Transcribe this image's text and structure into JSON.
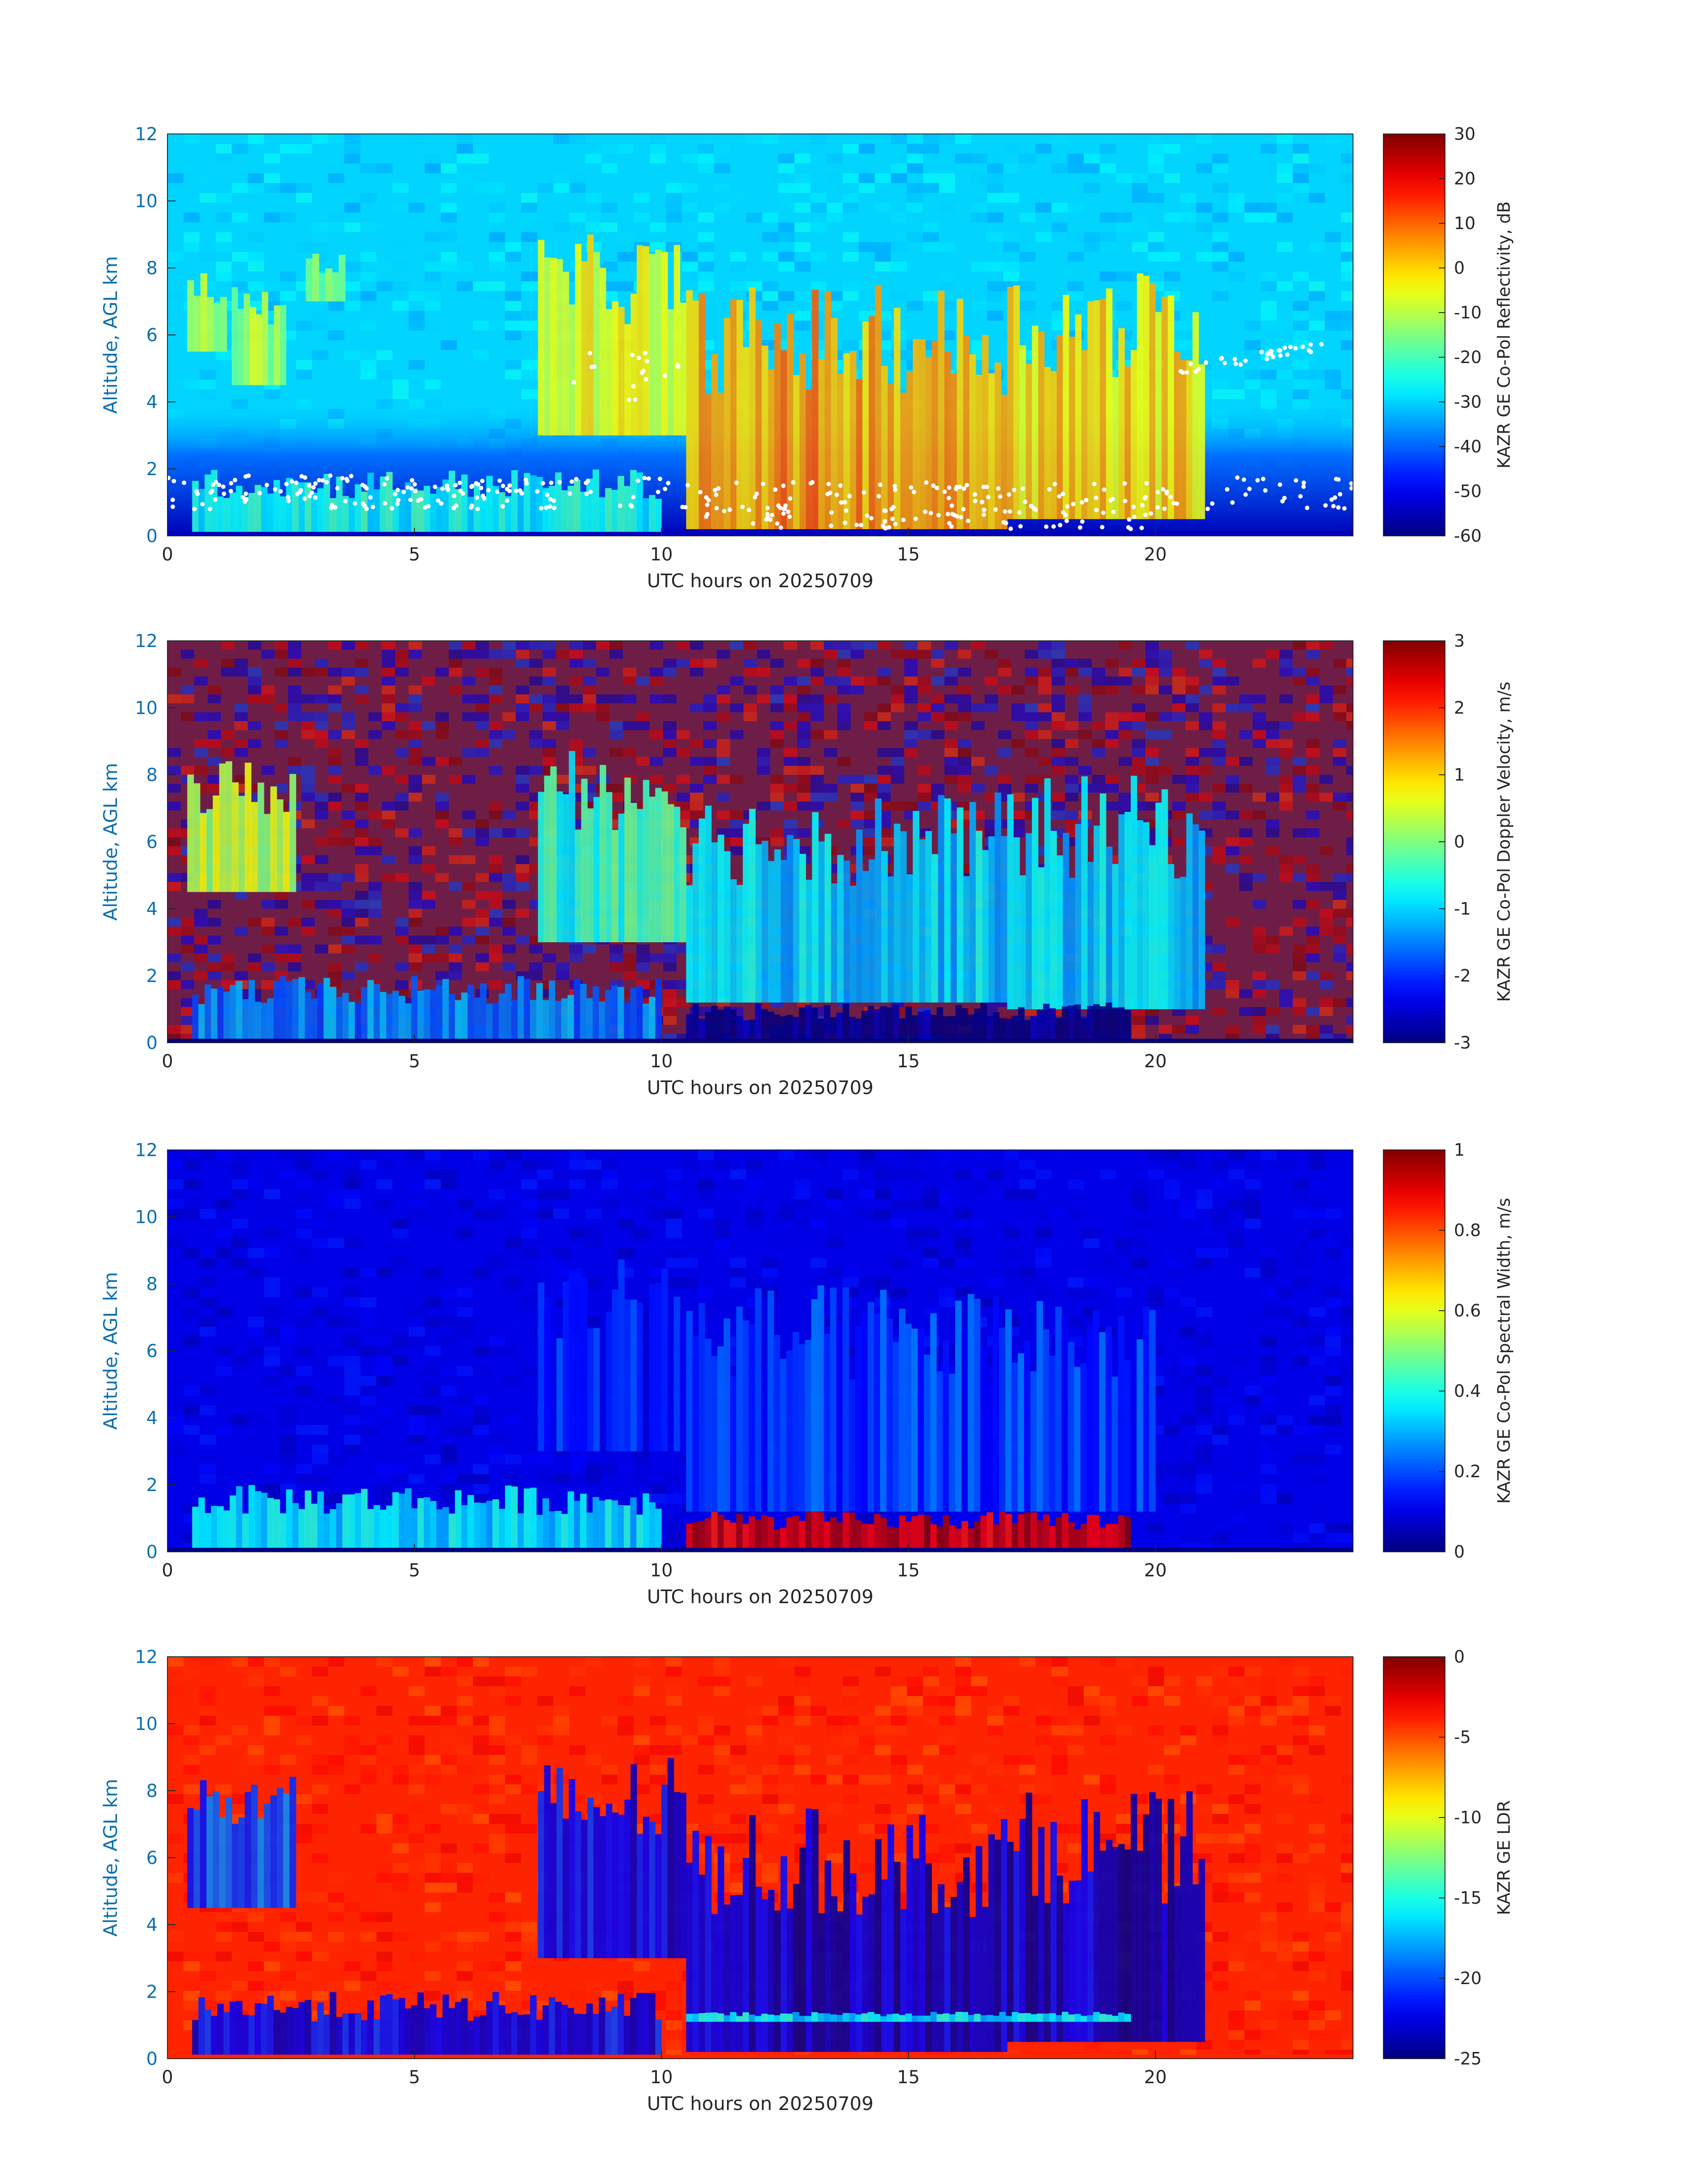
{
  "figure": {
    "colormap": "jet",
    "y_label_color": "#0b6fb1",
    "background": "#ffffff"
  },
  "chart_data": [
    {
      "type": "heatmap",
      "title": "",
      "xlabel": "UTC hours on 20250709",
      "ylabel": "Altitude, AGL km",
      "xlim": [
        0,
        24
      ],
      "ylim": [
        0,
        12
      ],
      "xticks": [
        "0",
        "5",
        "10",
        "15",
        "20"
      ],
      "yticks": [
        "0",
        "2",
        "4",
        "6",
        "8",
        "10",
        "12"
      ],
      "colorbar": {
        "label": "KAZR GE Co-Pol Reflectivity, dB",
        "range": [
          -60,
          30
        ],
        "ticks": [
          "-60",
          "-50",
          "-40",
          "-30",
          "-20",
          "-10",
          "0",
          "10",
          "20",
          "30"
        ]
      },
      "background_value": -30,
      "surface_value": -55,
      "overlay": "cloud-base-points",
      "features": [
        {
          "t": [
            0.4,
            1.2
          ],
          "z": [
            5.5,
            8.0
          ],
          "v": -10
        },
        {
          "t": [
            1.3,
            2.4
          ],
          "z": [
            4.5,
            7.5
          ],
          "v": -12
        },
        {
          "t": [
            2.8,
            3.6
          ],
          "z": [
            7.0,
            8.5
          ],
          "v": -15
        },
        {
          "t": [
            7.5,
            10.5
          ],
          "z": [
            3.0,
            9.0
          ],
          "v": -5
        },
        {
          "t": [
            10.5,
            17.0
          ],
          "z": [
            0.2,
            7.5
          ],
          "v": 5
        },
        {
          "t": [
            17.0,
            21.0
          ],
          "z": [
            0.5,
            8.0
          ],
          "v": 0
        },
        {
          "t": [
            0.5,
            10.0
          ],
          "z": [
            0.0,
            2.0
          ],
          "v": -25
        }
      ]
    },
    {
      "type": "heatmap",
      "title": "",
      "xlabel": "UTC hours on 20250709",
      "ylabel": "Altitude, AGL km",
      "xlim": [
        0,
        24
      ],
      "ylim": [
        0,
        12
      ],
      "xticks": [
        "0",
        "5",
        "10",
        "15",
        "20"
      ],
      "yticks": [
        "0",
        "2",
        "4",
        "6",
        "8",
        "10",
        "12"
      ],
      "colorbar": {
        "label": "KAZR GE Co-Pol Doppler Velocity, m/s",
        "range": [
          -3,
          3
        ],
        "ticks": [
          "-3",
          "-2",
          "-1",
          "0",
          "1",
          "2",
          "3"
        ]
      },
      "background_value": "noise",
      "surface_value": -3,
      "features": [
        {
          "t": [
            0.4,
            2.6
          ],
          "z": [
            4.5,
            8.5
          ],
          "v": 0.3
        },
        {
          "t": [
            7.5,
            10.5
          ],
          "z": [
            3.0,
            9.0
          ],
          "v": -0.5
        },
        {
          "t": [
            10.5,
            17.0
          ],
          "z": [
            1.2,
            7.5
          ],
          "v": -1.0
        },
        {
          "t": [
            17.0,
            21.0
          ],
          "z": [
            1.0,
            8.0
          ],
          "v": -1.0
        },
        {
          "t": [
            10.5,
            19.5
          ],
          "z": [
            0.0,
            1.2
          ],
          "v": -3.0
        },
        {
          "t": [
            0.5,
            10.0
          ],
          "z": [
            0.0,
            2.0
          ],
          "v": -1.5
        }
      ]
    },
    {
      "type": "heatmap",
      "title": "",
      "xlabel": "UTC hours on 20250709",
      "ylabel": "Altitude, AGL km",
      "xlim": [
        0,
        24
      ],
      "ylim": [
        0,
        12
      ],
      "xticks": [
        "0",
        "5",
        "10",
        "15",
        "20"
      ],
      "yticks": [
        "0",
        "2",
        "4",
        "6",
        "8",
        "10",
        "12"
      ],
      "colorbar": {
        "label": "KAZR GE Co-Pol Spectral Width, m/s",
        "range": [
          0,
          1
        ],
        "ticks": [
          "0",
          "0.2",
          "0.4",
          "0.6",
          "0.8",
          "1"
        ]
      },
      "background_value": 0.1,
      "surface_value": 0.0,
      "features": [
        {
          "t": [
            7.5,
            10.5
          ],
          "z": [
            3.0,
            9.0
          ],
          "v": 0.15
        },
        {
          "t": [
            10.5,
            20.0
          ],
          "z": [
            1.2,
            8.0
          ],
          "v": 0.18
        },
        {
          "t": [
            10.5,
            19.5
          ],
          "z": [
            0.0,
            1.2
          ],
          "v": 0.92
        },
        {
          "t": [
            0.5,
            10.0
          ],
          "z": [
            0.0,
            2.0
          ],
          "v": 0.35
        }
      ]
    },
    {
      "type": "heatmap",
      "title": "",
      "xlabel": "UTC hours on 20250709",
      "ylabel": "Altitude, AGL km",
      "xlim": [
        0,
        24
      ],
      "ylim": [
        0,
        12
      ],
      "xticks": [
        "0",
        "5",
        "10",
        "15",
        "20"
      ],
      "yticks": [
        "0",
        "2",
        "4",
        "6",
        "8",
        "10",
        "12"
      ],
      "colorbar": {
        "label": "KAZR GE LDR",
        "range": [
          -25,
          0
        ],
        "ticks": [
          "-25",
          "-20",
          "-15",
          "-10",
          "-5",
          "0"
        ]
      },
      "background_value": -4,
      "surface_value": -4,
      "features": [
        {
          "t": [
            0.4,
            2.6
          ],
          "z": [
            4.5,
            8.5
          ],
          "v": -20
        },
        {
          "t": [
            7.5,
            10.5
          ],
          "z": [
            3.0,
            9.0
          ],
          "v": -22
        },
        {
          "t": [
            10.5,
            17.0
          ],
          "z": [
            0.2,
            7.5
          ],
          "v": -23
        },
        {
          "t": [
            17.0,
            21.0
          ],
          "z": [
            0.5,
            8.0
          ],
          "v": -23
        },
        {
          "t": [
            10.5,
            19.5
          ],
          "z": [
            1.1,
            1.4
          ],
          "v": -16
        },
        {
          "t": [
            0.5,
            10.0
          ],
          "z": [
            0.0,
            2.0
          ],
          "v": -22
        }
      ]
    }
  ]
}
